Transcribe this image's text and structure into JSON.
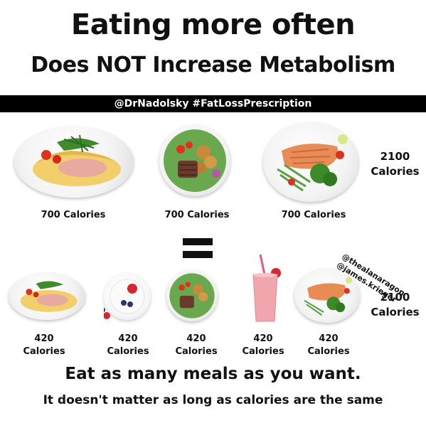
{
  "header": {
    "title_line1": "Eating more often",
    "title_line2": "Does NOT Increase Metabolism",
    "banner": "@DrNadolsky #FatLossPrescription"
  },
  "row1": {
    "meals": [
      {
        "food": "omelette",
        "calories": "700 Calories"
      },
      {
        "food": "bowl",
        "calories": "700 Calories"
      },
      {
        "food": "salmon",
        "calories": "700 Calories"
      }
    ],
    "total_value": "2100",
    "total_unit": "Calories"
  },
  "row2": {
    "meals": [
      {
        "food": "omelette",
        "value": "420",
        "unit": "Calories"
      },
      {
        "food": "yogurt",
        "value": "420",
        "unit": "Calories"
      },
      {
        "food": "bowl",
        "value": "420",
        "unit": "Calories"
      },
      {
        "food": "smoothie",
        "value": "420",
        "unit": "Calories"
      },
      {
        "food": "salmon",
        "value": "420",
        "unit": "Calories"
      }
    ],
    "total_value": "2100",
    "total_unit": "Calories"
  },
  "credits": {
    "handle1": "@thealanaragon",
    "handle2": "@james.krieger"
  },
  "footer": {
    "line1": "Eat as many meals as you want.",
    "line2": "It doesn't matter as long as calories are the same"
  },
  "colors": {
    "banner_bg": "#000000",
    "text": "#111111",
    "egg": "#f2cf6a",
    "greens": "#3f8a2c",
    "tomato": "#e0301e",
    "salmon": "#e98b55",
    "smoothie": "#f1a6ae"
  },
  "icons": {
    "equals": "equals-sign-icon"
  }
}
